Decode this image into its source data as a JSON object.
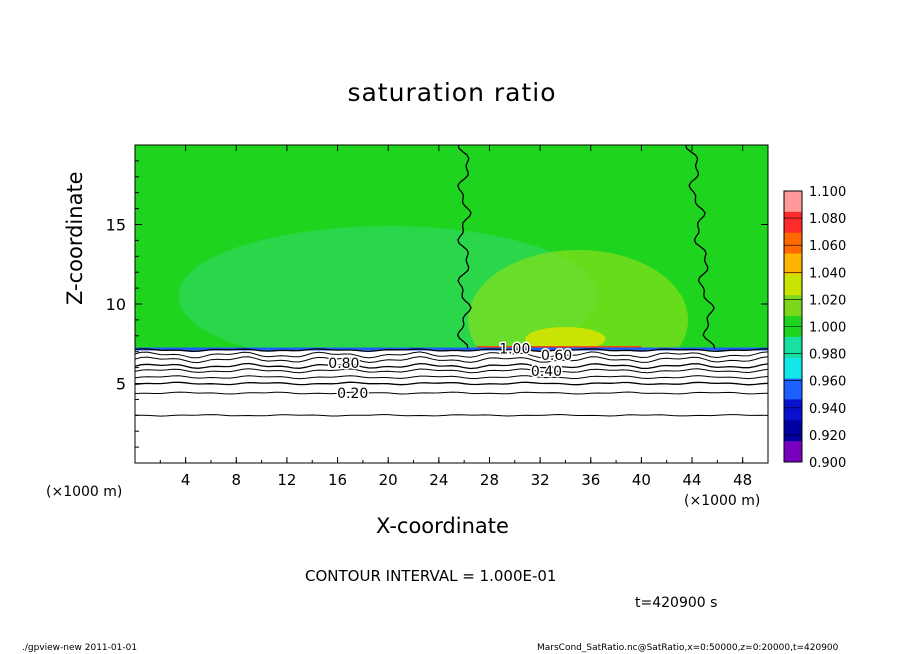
{
  "title": "saturation ratio",
  "xlabel": "X-coordinate",
  "ylabel": "Z-coordinate",
  "x_unit_left": "(×1000 m)",
  "x_unit_right": "(×1000 m)",
  "contour_text": "CONTOUR INTERVAL = 1.000E-01",
  "time_text": "t=420900 s",
  "footer_left": "./gpview-new   2011-01-01",
  "footer_right": "MarsCond_SatRatio.nc@SatRatio,x=0:50000,z=0:20000,t=420900",
  "colors": {
    "fill_main": "#1fd41f",
    "fill_light": "#8ee01a",
    "fill_bottom": "#ffffff"
  },
  "chart_data": {
    "type": "heatmap",
    "title": "saturation ratio",
    "xlabel": "X-coordinate",
    "ylabel": "Z-coordinate",
    "xlim": [
      0,
      50
    ],
    "ylim": [
      0,
      20
    ],
    "x_ticks": [
      4,
      8,
      12,
      16,
      20,
      24,
      28,
      32,
      36,
      40,
      44,
      48
    ],
    "y_ticks": [
      5,
      10,
      15
    ],
    "colorbar": {
      "levels": [
        "1.100",
        "1.080",
        "1.060",
        "1.040",
        "1.020",
        "1.000",
        "0.980",
        "0.960",
        "0.940",
        "0.920",
        "0.900"
      ],
      "colors": [
        "#ff9a9a",
        "#ff2a2a",
        "#ff6a00",
        "#ffb400",
        "#c8e400",
        "#7cd81a",
        "#1fd41f",
        "#18e0a0",
        "#12e8e8",
        "#1c60ff",
        "#0a10d0",
        "#0000a0",
        "#7a00c0"
      ]
    },
    "contour_labels": [
      {
        "text": "1.00",
        "x": 30,
        "z": 7.2
      },
      {
        "text": "0.80",
        "x": 16.5,
        "z": 6.3
      },
      {
        "text": "0.60",
        "x": 33.3,
        "z": 6.8
      },
      {
        "text": "0.40",
        "x": 32.5,
        "z": 5.8
      },
      {
        "text": "0.20",
        "x": 17.2,
        "z": 4.4
      }
    ],
    "saturated_front_x": [
      26,
      45.5
    ]
  }
}
